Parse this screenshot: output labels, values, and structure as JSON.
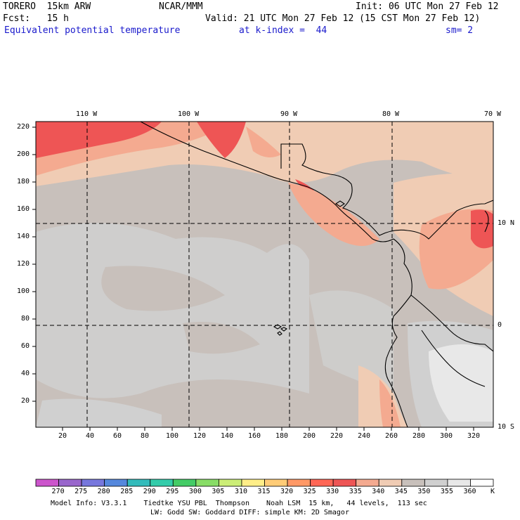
{
  "header": {
    "model": "TORERO  15km ARW",
    "org": "NCAR/MMM",
    "init": "Init: 06 UTC Mon 27 Feb 12",
    "fcst": "Fcst:   15 h",
    "valid": "Valid: 21 UTC Mon 27 Feb 12 (15 CST Mon 27 Feb 12)",
    "field": "Equivalent potential temperature",
    "level": "at k-index =  44",
    "smooth": "sm= 2"
  },
  "map": {
    "lon_labels": [
      "110 W",
      "100 W",
      "90 W",
      "80 W",
      "70 W"
    ],
    "lat_labels": [
      "10 N",
      "0",
      "10 S"
    ],
    "y_ticks": [
      "220",
      "200",
      "180",
      "160",
      "140",
      "120",
      "100",
      "80",
      "60",
      "40",
      "20"
    ],
    "x_ticks": [
      "20",
      "40",
      "60",
      "80",
      "100",
      "120",
      "140",
      "160",
      "180",
      "200",
      "220",
      "240",
      "260",
      "280",
      "300",
      "320"
    ]
  },
  "colorbar": {
    "labels": [
      "270",
      "275",
      "280",
      "285",
      "290",
      "295",
      "300",
      "305",
      "310",
      "315",
      "320",
      "325",
      "330",
      "335",
      "340",
      "345",
      "350",
      "355",
      "360"
    ],
    "unit": "K",
    "colors": [
      "#cc55cc",
      "#9966cc",
      "#7777dd",
      "#5588dd",
      "#33bbbb",
      "#33ccaa",
      "#44cc66",
      "#88dd66",
      "#ccee77",
      "#ffee88",
      "#ffcc77",
      "#ff9966",
      "#ff6655",
      "#ee5555",
      "#f4aa90",
      "#f0ccb4",
      "#c8c0bb",
      "#d0d0d0",
      "#e8e8e8",
      "#ffffff"
    ]
  },
  "footer": {
    "line1": "Model Info: V3.3.1    Tiedtke YSU PBL  Thompson    Noah LSM  15 km,   44 levels,  113 sec",
    "line2": "LW: Godd SW: Goddard DIFF: simple KM: 2D Smagor"
  }
}
